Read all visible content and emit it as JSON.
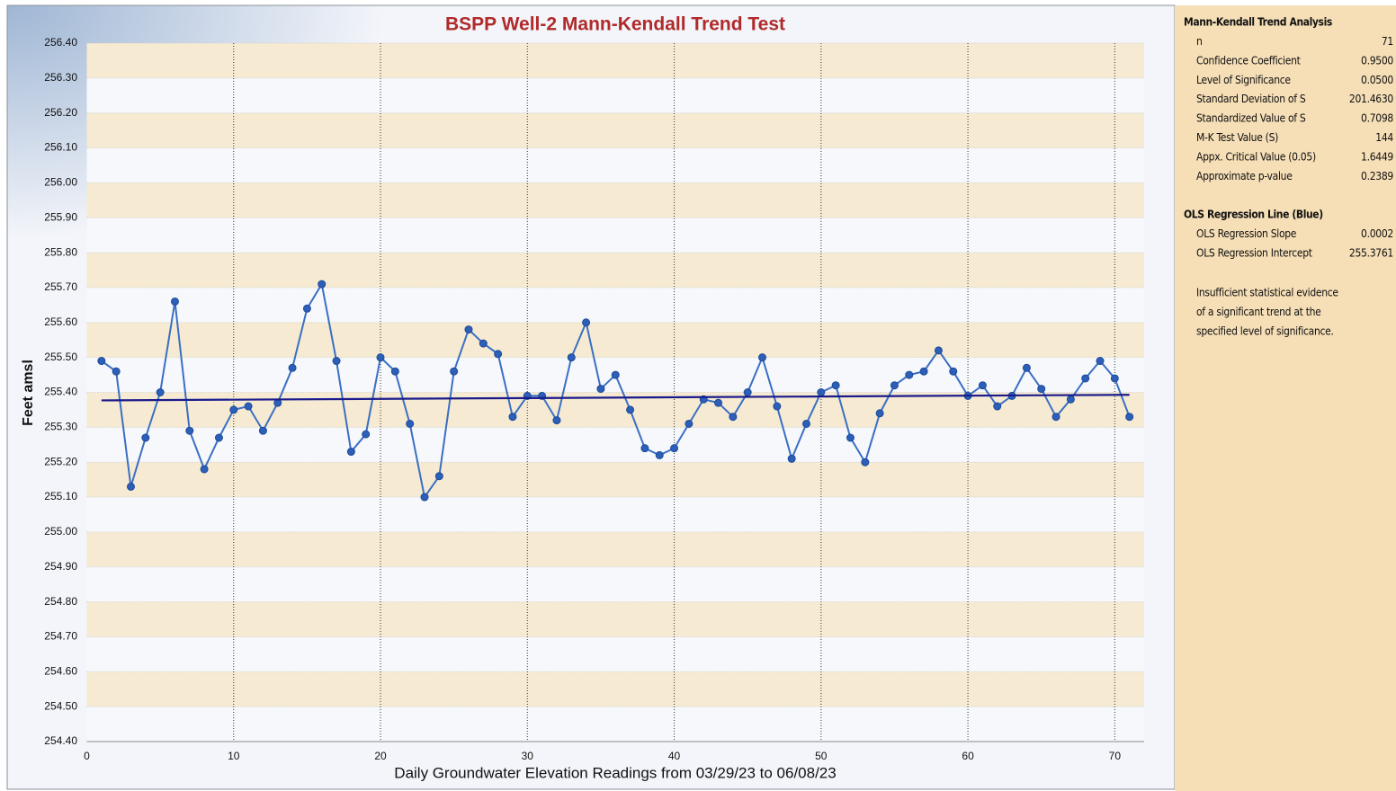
{
  "chart_data": {
    "type": "line",
    "title": "BSPP Well-2 Mann-Kendall Trend Test",
    "x_label": "Daily Groundwater Elevation Readings from 03/29/23 to 06/08/23",
    "y_label": "Feet amsl",
    "xlim": [
      0,
      72
    ],
    "xticks": [
      0,
      10,
      20,
      30,
      40,
      50,
      60,
      70
    ],
    "ylim": [
      254.4,
      256.4
    ],
    "yticks": [
      {
        "value": 254.4,
        "label": "254.40"
      },
      {
        "value": 254.5,
        "label": "254.50"
      },
      {
        "value": 254.6,
        "label": "254.60"
      },
      {
        "value": 254.7,
        "label": "254.70"
      },
      {
        "value": 254.8,
        "label": "254.80"
      },
      {
        "value": 254.9,
        "label": "254.90"
      },
      {
        "value": 255.0,
        "label": "255.00"
      },
      {
        "value": 255.1,
        "label": "255.10"
      },
      {
        "value": 255.2,
        "label": "255.20"
      },
      {
        "value": 255.3,
        "label": "255.30"
      },
      {
        "value": 255.4,
        "label": "255.40"
      },
      {
        "value": 255.5,
        "label": "255.50"
      },
      {
        "value": 255.6,
        "label": "255.60"
      },
      {
        "value": 255.7,
        "label": "255.70"
      },
      {
        "value": 255.8,
        "label": "255.80"
      },
      {
        "value": 255.9,
        "label": "255.90"
      },
      {
        "value": 256.0,
        "label": "256.00"
      },
      {
        "value": 256.1,
        "label": "256.10"
      },
      {
        "value": 256.2,
        "label": "256.20"
      },
      {
        "value": 256.3,
        "label": "256.30"
      },
      {
        "value": 256.4,
        "label": "256.40"
      }
    ],
    "grid": true,
    "series": [
      {
        "color": "#3a6fc4",
        "markers": true,
        "x": [
          1,
          2,
          3,
          4,
          5,
          6,
          7,
          8,
          9,
          10,
          11,
          12,
          13,
          14,
          15,
          16,
          17,
          18,
          19,
          20,
          21,
          22,
          23,
          24,
          25,
          26,
          27,
          28,
          29,
          30,
          31,
          32,
          33,
          34,
          35,
          36,
          37,
          38,
          39,
          40,
          41,
          42,
          43,
          44,
          45,
          46,
          47,
          48,
          49,
          50,
          51,
          52,
          53,
          54,
          55,
          56,
          57,
          58,
          59,
          60,
          61,
          62,
          63,
          64,
          65,
          66,
          67,
          68,
          69,
          70,
          71
        ],
        "values": [
          255.49,
          255.46,
          255.13,
          255.27,
          255.4,
          255.66,
          255.29,
          255.18,
          255.27,
          255.35,
          255.36,
          255.29,
          255.37,
          255.47,
          255.64,
          255.71,
          255.49,
          255.23,
          255.28,
          255.5,
          255.46,
          255.31,
          255.1,
          255.16,
          255.46,
          255.58,
          255.54,
          255.51,
          255.33,
          255.39,
          255.39,
          255.32,
          255.5,
          255.6,
          255.41,
          255.45,
          255.35,
          255.24,
          255.22,
          255.24,
          255.31,
          255.38,
          255.37,
          255.33,
          255.4,
          255.5,
          255.36,
          255.21,
          255.31,
          255.4,
          255.42,
          255.27,
          255.2,
          255.34,
          255.42,
          255.45,
          255.46,
          255.52,
          255.46,
          255.39,
          255.42,
          255.36,
          255.39,
          255.47,
          255.41,
          255.33,
          255.38,
          255.44,
          255.49,
          255.44,
          255.33
        ]
      },
      {
        "color": "#1a1a8c",
        "markers": false,
        "x": [
          1,
          71
        ],
        "values": [
          255.377,
          255.393
        ]
      }
    ]
  },
  "panel": {
    "sections": [
      {
        "title": "Mann-Kendall Trend Analysis",
        "rows": [
          {
            "label": "n",
            "value": "71"
          },
          {
            "label": "Confidence Coefficient",
            "value": "0.9500"
          },
          {
            "label": "Level of Significance",
            "value": "0.0500"
          },
          {
            "label": "Standard Deviation of S",
            "value": "201.4630"
          },
          {
            "label": "Standardized Value of S",
            "value": "0.7098"
          },
          {
            "label": "M-K Test Value (S)",
            "value": "144"
          },
          {
            "label": "Appx. Critical Value (0.05)",
            "value": "1.6449"
          },
          {
            "label": "Approximate p-value",
            "value": "0.2389"
          }
        ]
      },
      {
        "title": "OLS Regression Line (Blue)",
        "rows": [
          {
            "label": "OLS Regression Slope",
            "value": "0.0002"
          },
          {
            "label": "OLS Regression Intercept",
            "value": "255.3761"
          }
        ]
      }
    ],
    "note": [
      "Insufficient statistical evidence",
      "of a significant trend at the",
      "specified level of significance."
    ]
  }
}
